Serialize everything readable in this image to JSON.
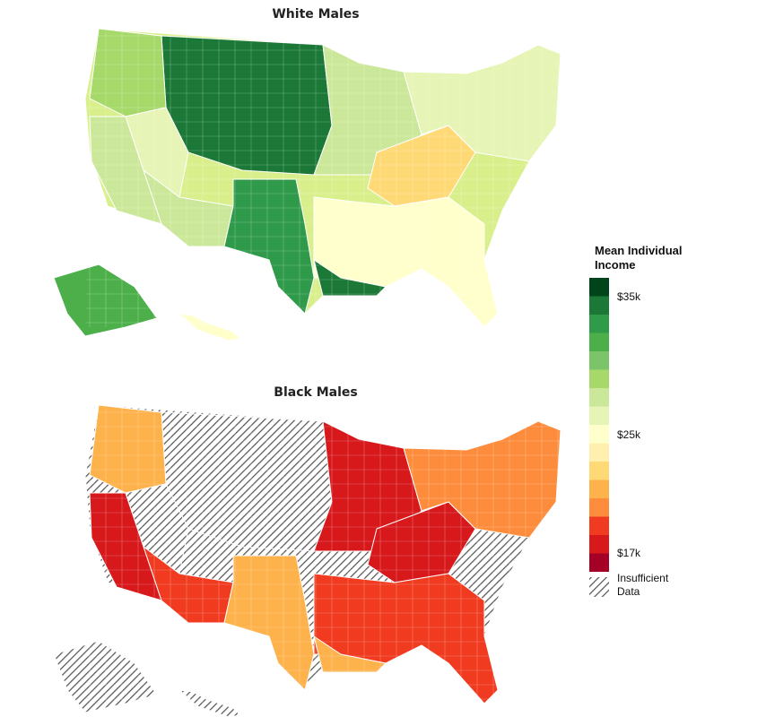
{
  "titles": {
    "top": "White Males",
    "bottom": "Black Males"
  },
  "legend": {
    "title_line1": "Mean Individual",
    "title_line2": "Income",
    "tick_35": "$35k",
    "tick_25": "$25k",
    "tick_17": "$17k",
    "na_line1": "Insufficient",
    "na_line2": "Data",
    "colors": [
      "#00441b",
      "#1b7837",
      "#2f9a4a",
      "#4daf4a",
      "#7cc46a",
      "#a6d96a",
      "#cbe89a",
      "#e6f5b5",
      "#ffffcc",
      "#fff0b0",
      "#fed976",
      "#feb24c",
      "#fd8d3c",
      "#f03b20",
      "#d7191c",
      "#a50026"
    ],
    "na_pattern": "diagonal-hatch"
  },
  "maps": {
    "top": {
      "regions": [
        {
          "name": "northern-plains",
          "value": 0.95
        },
        {
          "name": "pacific-northwest",
          "value": 0.7
        },
        {
          "name": "california",
          "value": 0.6
        },
        {
          "name": "great-basin",
          "value": 0.55
        },
        {
          "name": "southwest",
          "value": 0.58
        },
        {
          "name": "texas",
          "value": 0.85
        },
        {
          "name": "midwest",
          "value": 0.62
        },
        {
          "name": "appalachia",
          "value": 0.32
        },
        {
          "name": "southeast",
          "value": 0.45
        },
        {
          "name": "northeast",
          "value": 0.52
        },
        {
          "name": "gulf-coast",
          "value": 0.9
        },
        {
          "name": "alaska",
          "value": 0.8
        },
        {
          "name": "hawaii",
          "value": 0.5
        }
      ]
    },
    "bottom": {
      "regions": [
        {
          "name": "northern-plains",
          "value": null
        },
        {
          "name": "pacific-northwest",
          "value": 0.25
        },
        {
          "name": "california",
          "value": 0.1
        },
        {
          "name": "great-basin",
          "value": null
        },
        {
          "name": "southwest",
          "value": 0.15
        },
        {
          "name": "texas",
          "value": 0.3
        },
        {
          "name": "midwest",
          "value": 0.08
        },
        {
          "name": "appalachia",
          "value": 0.1
        },
        {
          "name": "southeast",
          "value": 0.12
        },
        {
          "name": "northeast",
          "value": 0.2
        },
        {
          "name": "gulf-coast",
          "value": 0.3
        },
        {
          "name": "alaska",
          "value": null
        },
        {
          "name": "hawaii",
          "value": null
        }
      ]
    }
  }
}
